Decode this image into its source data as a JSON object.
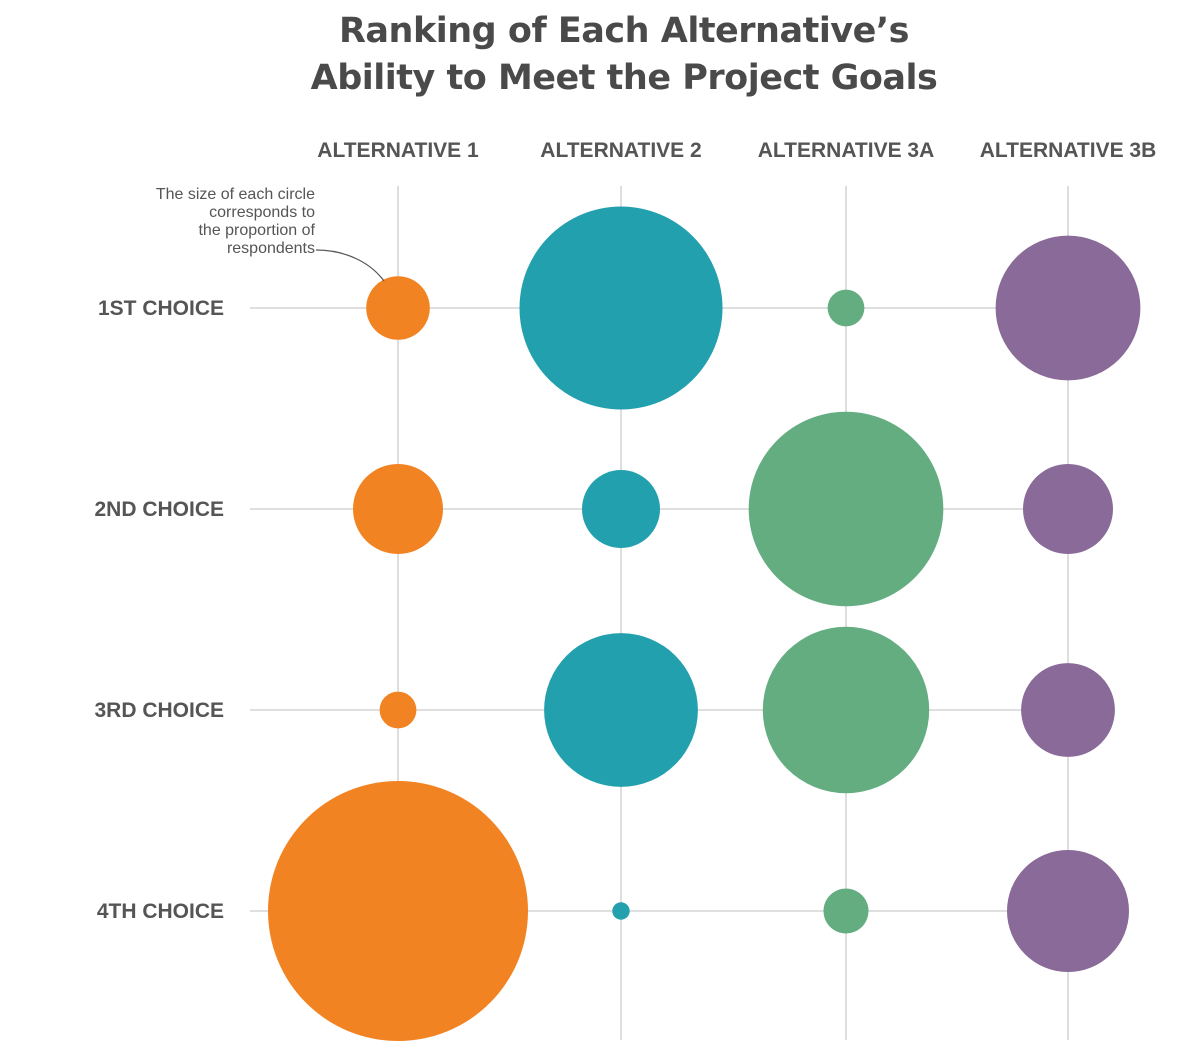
{
  "chart_data": {
    "type": "bubble-grid",
    "title_lines": [
      "Ranking of Each Alternative’s",
      "Ability to Meet the Project Goals"
    ],
    "columns": [
      "ALTERNATIVE 1",
      "ALTERNATIVE 2",
      "ALTERNATIVE 3A",
      "ALTERNATIVE 3B"
    ],
    "rows": [
      "1ST CHOICE",
      "2ND CHOICE",
      "3RD CHOICE",
      "4TH CHOICE"
    ],
    "colors": {
      "ALTERNATIVE 1": "#f28322",
      "ALTERNATIVE 2": "#23a0ad",
      "ALTERNATIVE 3A": "#63ad80",
      "ALTERNATIVE 3B": "#896a98",
      "text": "#555555",
      "grid": "#cccccc"
    },
    "annotation_lines": [
      "The size of each circle",
      "corresponds to",
      "the proportion of",
      "respondents"
    ],
    "size_encoding": "circle area ∝ proportion of respondents",
    "relative_sizes": [
      [
        0.06,
        0.61,
        0.02,
        0.31
      ],
      [
        0.12,
        0.09,
        0.56,
        0.12
      ],
      [
        0.02,
        0.35,
        0.41,
        0.13
      ],
      [
        1.0,
        0.0045,
        0.03,
        0.22
      ]
    ]
  }
}
